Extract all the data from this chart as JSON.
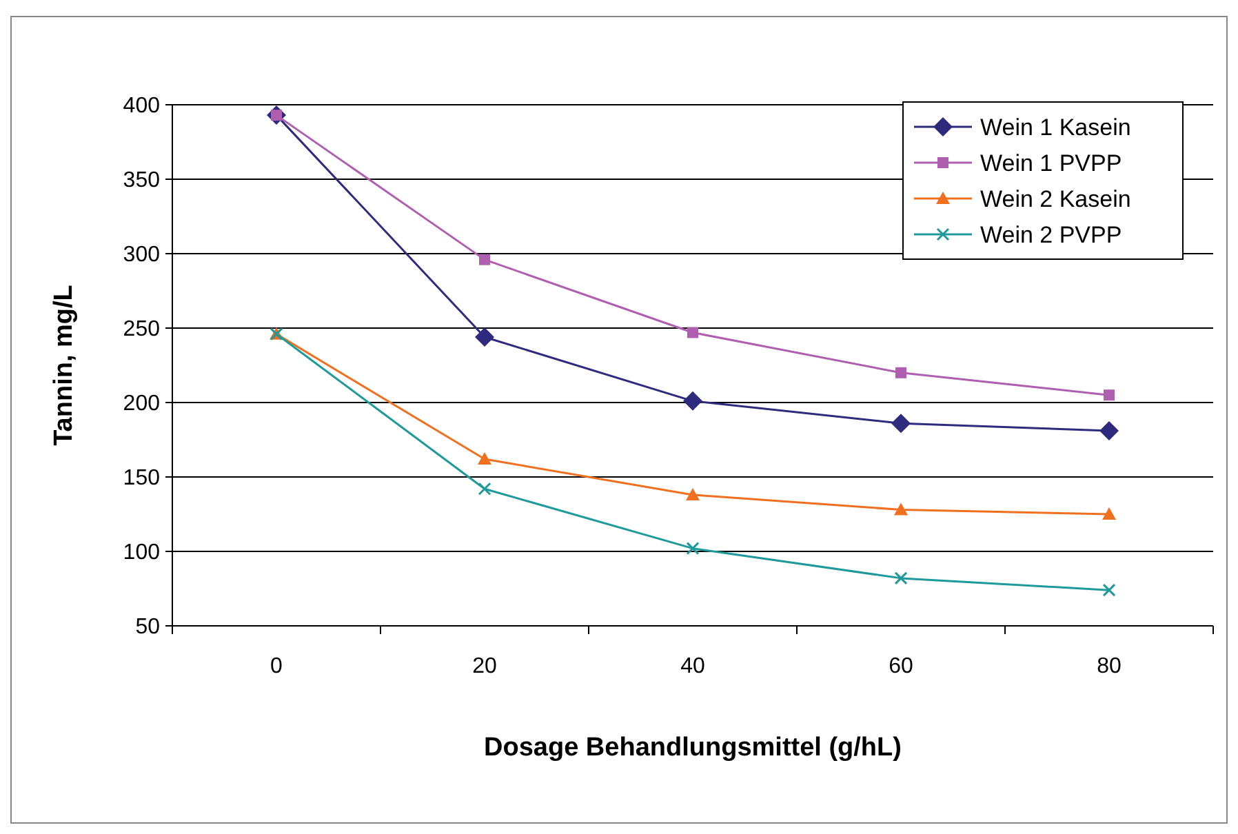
{
  "chart_data": {
    "type": "line",
    "xlabel": "Dosage Behandlungsmittel (g/hL)",
    "ylabel": "Tannin, mg/L",
    "categories": [
      "0",
      "20",
      "40",
      "60",
      "80"
    ],
    "series": [
      {
        "name": "Wein 1 Kasein",
        "color": "#2e2a7e",
        "marker": "diamond",
        "values": [
          393,
          244,
          201,
          186,
          181
        ]
      },
      {
        "name": "Wein 1 PVPP",
        "color": "#b05eb0",
        "marker": "square",
        "values": [
          393,
          296,
          247,
          220,
          205
        ]
      },
      {
        "name": "Wein 2 Kasein",
        "color": "#f07020",
        "marker": "triangle",
        "values": [
          246,
          162,
          138,
          128,
          125
        ]
      },
      {
        "name": "Wein 2 PVPP",
        "color": "#1f9a9a",
        "marker": "cross",
        "values": [
          246,
          142,
          102,
          82,
          74
        ]
      }
    ],
    "ylim": [
      50,
      400
    ],
    "yticks": [
      50,
      100,
      150,
      200,
      250,
      300,
      350,
      400
    ],
    "grid": "y",
    "legend": "top right",
    "line_style": "solid"
  }
}
